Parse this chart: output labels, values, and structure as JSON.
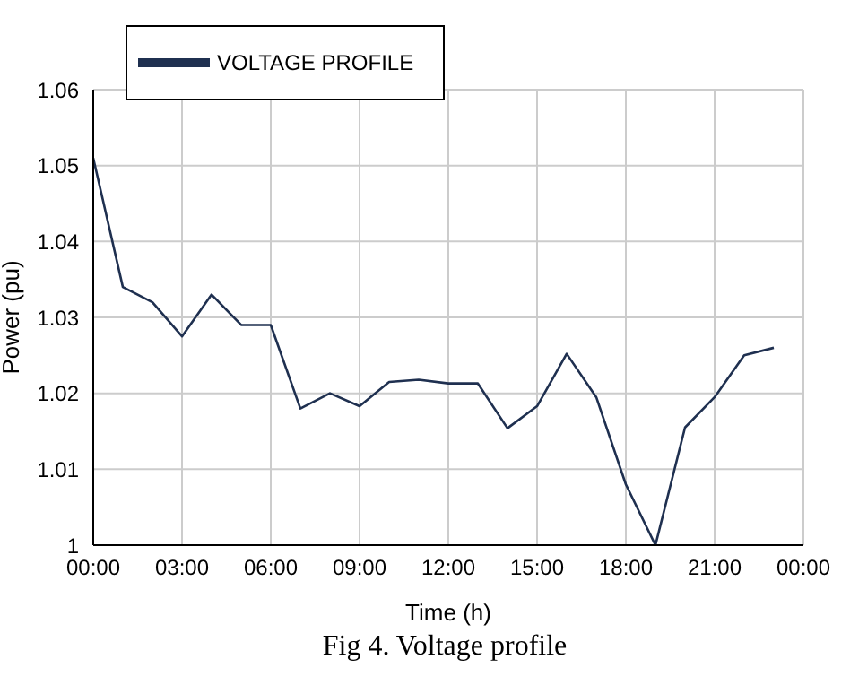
{
  "chart_data": {
    "type": "line",
    "xlabel": "Time (h)",
    "ylabel": "Power (pu)",
    "annotations": [
      "Fig 4. Voltage profile"
    ],
    "x": [
      0,
      1,
      2,
      3,
      4,
      5,
      6,
      7,
      8,
      9,
      10,
      11,
      12,
      13,
      14,
      15,
      16,
      17,
      18,
      19,
      20,
      21,
      22,
      23
    ],
    "series": [
      {
        "name": "VOLTAGE PROFILE",
        "color": "#1f3050",
        "values": [
          1.051,
          1.034,
          1.032,
          1.0275,
          1.033,
          1.029,
          1.029,
          1.018,
          1.02,
          1.0183,
          1.0215,
          1.0218,
          1.0213,
          1.0213,
          1.0154,
          1.0183,
          1.0252,
          1.0195,
          1.008,
          1.0,
          1.0155,
          1.0195,
          1.025,
          1.026
        ]
      }
    ],
    "xlim": [
      0,
      24
    ],
    "xticks": [
      {
        "value": 0,
        "label": "00:00"
      },
      {
        "value": 3,
        "label": "03:00"
      },
      {
        "value": 6,
        "label": "06:00"
      },
      {
        "value": 9,
        "label": "09:00"
      },
      {
        "value": 12,
        "label": "12:00"
      },
      {
        "value": 15,
        "label": "15:00"
      },
      {
        "value": 18,
        "label": "18:00"
      },
      {
        "value": 21,
        "label": "21:00"
      },
      {
        "value": 24,
        "label": "00:00"
      }
    ],
    "ylim": [
      1,
      1.06
    ],
    "yticks": [
      1,
      1.01,
      1.02,
      1.03,
      1.04,
      1.05,
      1.06
    ],
    "grid": true,
    "legend": "top left",
    "marker": "none",
    "line_style": "solid"
  }
}
